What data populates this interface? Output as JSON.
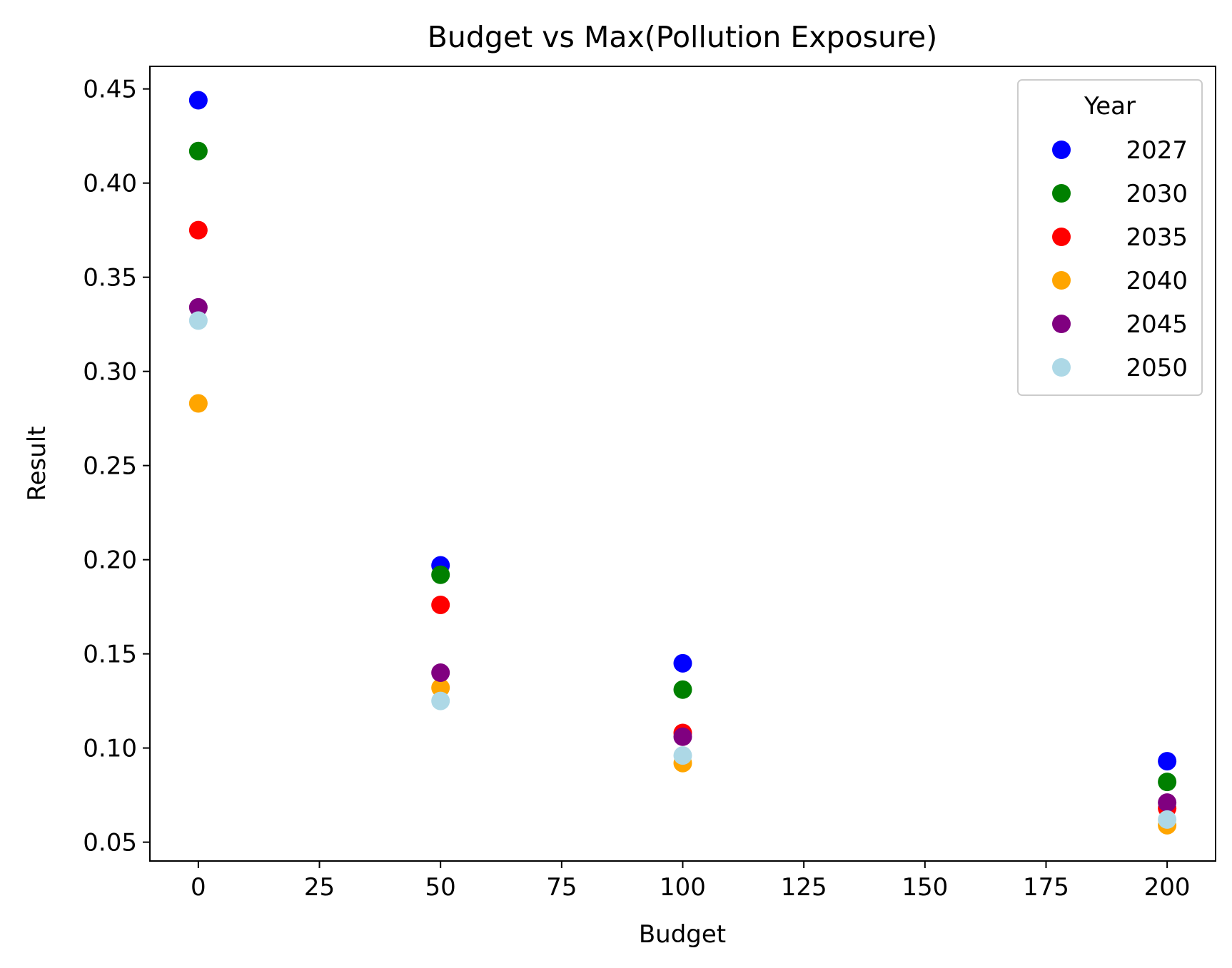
{
  "chart_data": {
    "type": "scatter",
    "title": "Budget vs Max(Pollution Exposure)",
    "xlabel": "Budget",
    "ylabel": "Result",
    "xlim": [
      -10,
      210
    ],
    "ylim": [
      0.04,
      0.462
    ],
    "xticks": [
      0,
      25,
      50,
      75,
      100,
      125,
      150,
      175,
      200
    ],
    "yticks": [
      0.05,
      0.1,
      0.15,
      0.2,
      0.25,
      0.3,
      0.35,
      0.4,
      0.45
    ],
    "xtick_labels": [
      "0",
      "25",
      "50",
      "75",
      "100",
      "125",
      "150",
      "175",
      "200"
    ],
    "ytick_labels": [
      "0.05",
      "0.10",
      "0.15",
      "0.20",
      "0.25",
      "0.30",
      "0.35",
      "0.40",
      "0.45"
    ],
    "grid": false,
    "legend": {
      "title": "Year",
      "placement": "top-right"
    },
    "x": [
      0,
      50,
      100,
      200
    ],
    "series": [
      {
        "name": "2027",
        "color": "#0000ff",
        "values": [
          0.444,
          0.197,
          0.145,
          0.093
        ]
      },
      {
        "name": "2030",
        "color": "#008000",
        "values": [
          0.417,
          0.192,
          0.131,
          0.082
        ]
      },
      {
        "name": "2035",
        "color": "#ff0000",
        "values": [
          0.375,
          0.176,
          0.108,
          0.068
        ]
      },
      {
        "name": "2040",
        "color": "#ffa500",
        "values": [
          0.283,
          0.132,
          0.092,
          0.059
        ]
      },
      {
        "name": "2045",
        "color": "#800080",
        "values": [
          0.334,
          0.14,
          0.106,
          0.071
        ]
      },
      {
        "name": "2050",
        "color": "#add8e6",
        "values": [
          0.327,
          0.125,
          0.096,
          0.062
        ]
      }
    ]
  }
}
